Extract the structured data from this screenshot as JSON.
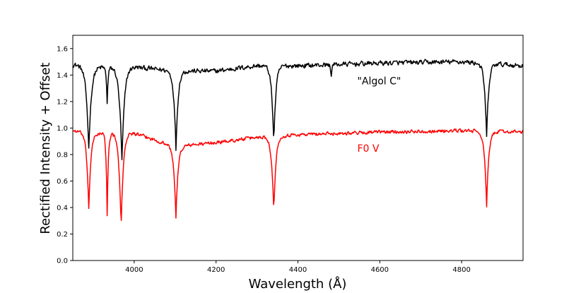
{
  "chart_data": {
    "type": "line",
    "title": "",
    "xlabel": "Wavelength (Å)",
    "ylabel": "Rectified Intensity + Offset",
    "xlim": [
      3850,
      4950
    ],
    "ylim": [
      0.0,
      1.7
    ],
    "x_ticks": [
      4000,
      4200,
      4400,
      4600,
      4800
    ],
    "y_ticks": [
      0.0,
      0.2,
      0.4,
      0.6,
      0.8,
      1.0,
      1.2,
      1.4,
      1.6
    ],
    "grid": false,
    "legend": "none",
    "series": [
      {
        "name": "\"Algol C\"",
        "color": "#000000",
        "offset": 0.5,
        "baseline": [
          [
            3850,
            0.98
          ],
          [
            3900,
            0.96
          ],
          [
            4000,
            0.96
          ],
          [
            4100,
            0.93
          ],
          [
            4200,
            0.93
          ],
          [
            4300,
            0.97
          ],
          [
            4400,
            0.97
          ],
          [
            4600,
            0.99
          ],
          [
            4800,
            1.0
          ],
          [
            4950,
            0.97
          ]
        ],
        "noise": 0.025,
        "absorption_lines": [
          {
            "center": 3889,
            "depth": 0.62,
            "width": 6
          },
          {
            "center": 3934,
            "depth": 0.27,
            "width": 2.2
          },
          {
            "center": 3970,
            "depth": 0.71,
            "width": 6
          },
          {
            "center": 4102,
            "depth": 0.59,
            "width": 5
          },
          {
            "center": 4341,
            "depth": 0.58,
            "width": 5
          },
          {
            "center": 4481,
            "depth": 0.1,
            "width": 1.5
          },
          {
            "center": 4861,
            "depth": 0.56,
            "width": 5
          }
        ],
        "label": "\"Algol C\""
      },
      {
        "name": "F0 V",
        "color": "#ff0000",
        "offset": 0.0,
        "baseline": [
          [
            3850,
            0.98
          ],
          [
            3900,
            0.96
          ],
          [
            4000,
            0.96
          ],
          [
            4100,
            0.86
          ],
          [
            4200,
            0.89
          ],
          [
            4300,
            0.93
          ],
          [
            4400,
            0.95
          ],
          [
            4600,
            0.97
          ],
          [
            4800,
            0.98
          ],
          [
            4950,
            0.97
          ]
        ],
        "noise": 0.018,
        "absorption_lines": [
          {
            "center": 3889,
            "depth": 0.57,
            "width": 5
          },
          {
            "center": 3934,
            "depth": 0.62,
            "width": 2.5
          },
          {
            "center": 3968,
            "depth": 0.73,
            "width": 5
          },
          {
            "center": 4102,
            "depth": 0.53,
            "width": 5
          },
          {
            "center": 4341,
            "depth": 0.57,
            "width": 5
          },
          {
            "center": 4861,
            "depth": 0.57,
            "width": 5
          }
        ],
        "label": "F0 V"
      }
    ],
    "annotations": [
      {
        "text": "\"Algol C\"",
        "color": "#000000",
        "x": 4545,
        "y": 1.33
      },
      {
        "text": "F0 V",
        "color": "#ff0000",
        "x": 4545,
        "y": 0.82
      }
    ]
  }
}
